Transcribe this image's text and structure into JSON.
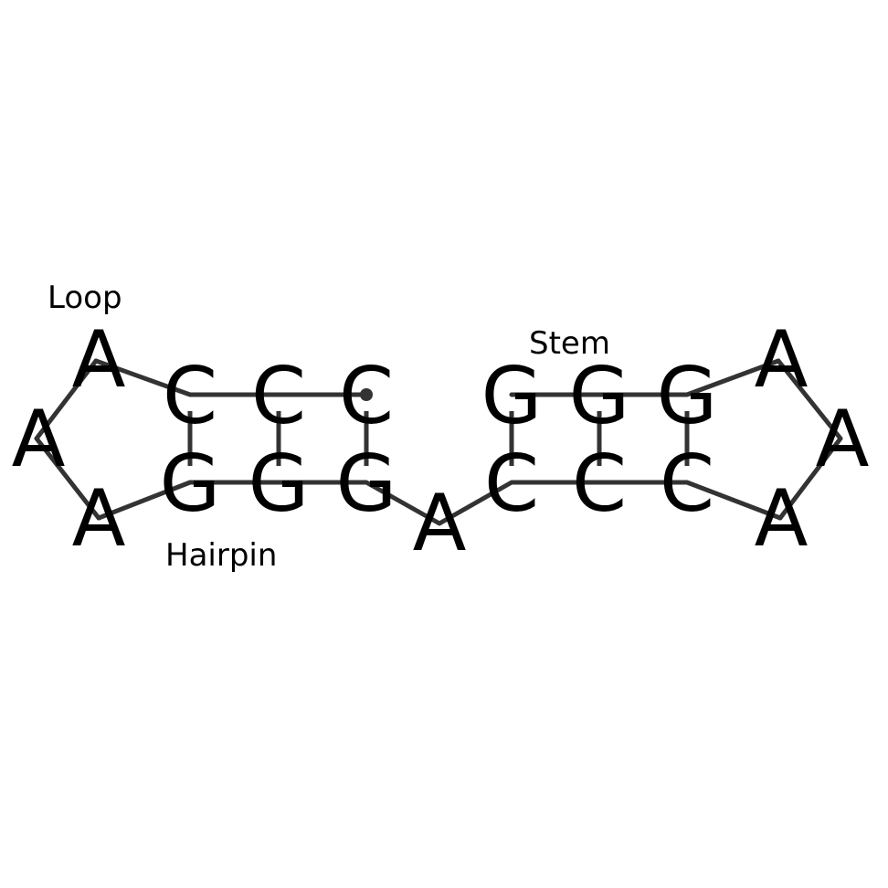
{
  "labels": {
    "loop": "Loop",
    "stem": "Stem",
    "hairpin": "Hairpin"
  },
  "nucleotides": [
    "A",
    "C",
    "C",
    "C",
    "G",
    "G",
    "G",
    "A",
    "A",
    "A",
    "G",
    "G",
    "G",
    "C",
    "C",
    "C",
    "A",
    "A",
    "A"
  ],
  "colors": {
    "backbone": "#333333",
    "text": "#000000",
    "background": "#ffffff"
  }
}
